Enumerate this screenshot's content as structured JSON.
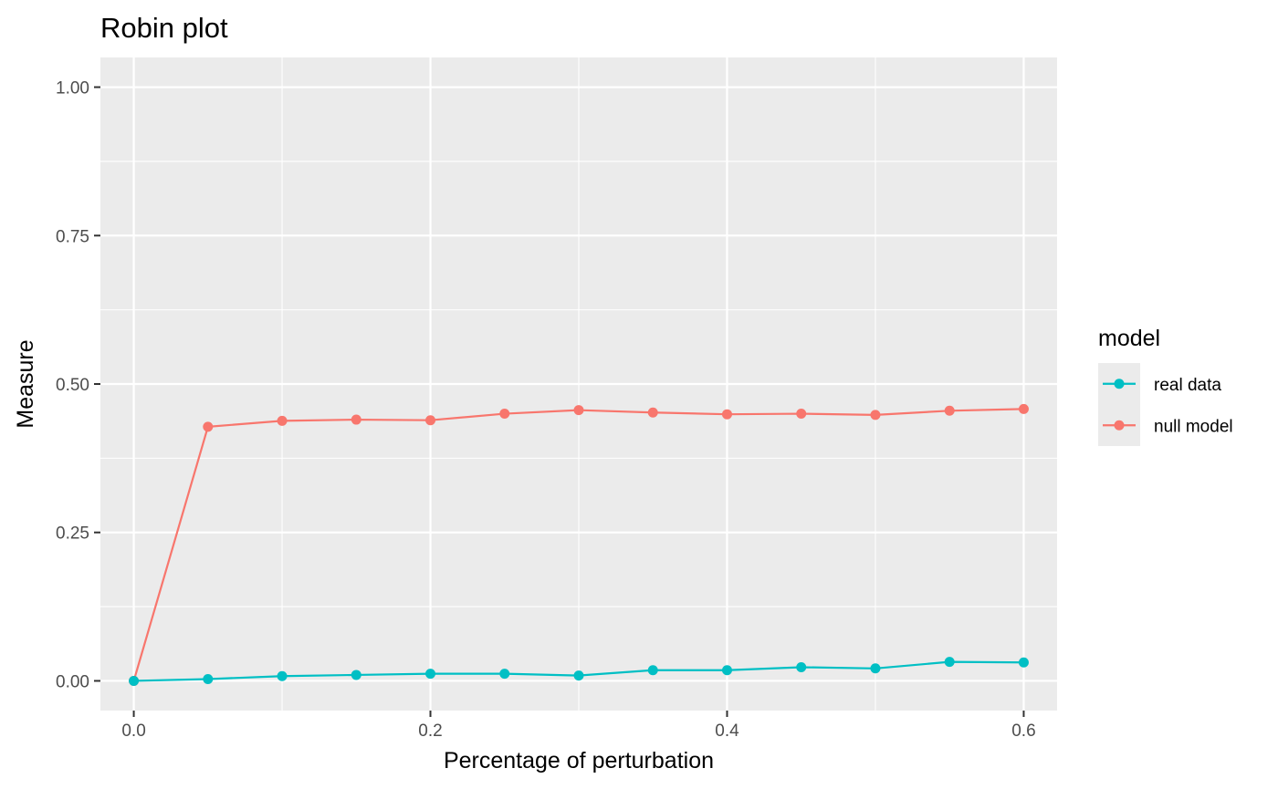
{
  "chart_data": {
    "type": "line",
    "title": "Robin plot",
    "xlabel": "Percentage of perturbation",
    "ylabel": "Measure",
    "xlim": [
      -0.0225,
      0.6225
    ],
    "ylim": [
      -0.05,
      1.05
    ],
    "x_ticks": [
      0.0,
      0.2,
      0.4,
      0.6
    ],
    "x_tick_labels": [
      "0.0",
      "0.2",
      "0.4",
      "0.6"
    ],
    "x_minor_ticks": [
      0.1,
      0.3,
      0.5
    ],
    "y_ticks": [
      0.0,
      0.25,
      0.5,
      0.75,
      1.0
    ],
    "y_tick_labels": [
      "0.00",
      "0.25",
      "0.50",
      "0.75",
      "1.00"
    ],
    "y_minor_ticks": [
      0.125,
      0.375,
      0.625,
      0.875
    ],
    "grid": true,
    "legend_title": "model",
    "legend_position": "right",
    "x": [
      0.0,
      0.05,
      0.1,
      0.15,
      0.2,
      0.25,
      0.3,
      0.35,
      0.4,
      0.45,
      0.5,
      0.55,
      0.6
    ],
    "series": [
      {
        "name": "real data",
        "color": "#00BFC4",
        "values": [
          0.0,
          0.003,
          0.008,
          0.01,
          0.012,
          0.012,
          0.009,
          0.018,
          0.018,
          0.023,
          0.021,
          0.032,
          0.031
        ]
      },
      {
        "name": "null model",
        "color": "#F8766D",
        "values": [
          0.0,
          0.428,
          0.438,
          0.44,
          0.439,
          0.45,
          0.456,
          0.452,
          0.449,
          0.45,
          0.448,
          0.455,
          0.458
        ]
      }
    ]
  }
}
